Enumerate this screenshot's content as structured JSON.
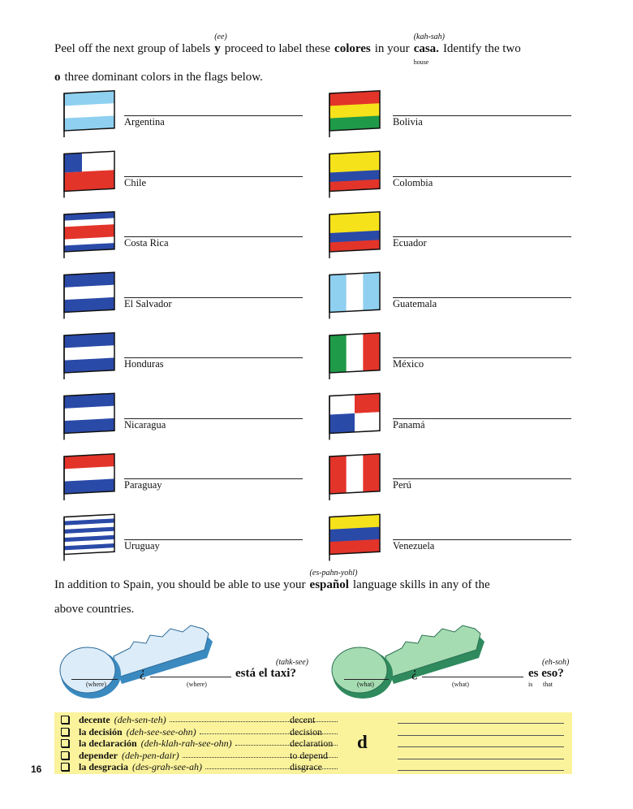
{
  "intro": {
    "line1": [
      {
        "text": "Peel off the next group of labels"
      },
      {
        "text": "y",
        "bold": true,
        "above": "(ee)"
      },
      {
        "text": "proceed to label these"
      },
      {
        "text": "colores",
        "bold": true
      },
      {
        "text": "in your"
      },
      {
        "text": "casa.",
        "bold": true,
        "above": "(kah-sah)",
        "below": "house"
      },
      {
        "text": "Identify the two"
      }
    ],
    "line2": [
      {
        "text": "o",
        "bold": true
      },
      {
        "text": "three dominant colors in the flags below."
      }
    ]
  },
  "flags": {
    "left": [
      "Argentina",
      "Chile",
      "Costa Rica",
      "El Salvador",
      "Honduras",
      "Nicaragua",
      "Paraguay",
      "Uruguay"
    ],
    "right": [
      "Bolivia",
      "Colombia",
      "Ecuador",
      "Guatemala",
      "México",
      "Panamá",
      "Perú",
      "Venezuela"
    ]
  },
  "outro": {
    "line1": [
      {
        "text": "In addition to Spain, you should be able to use your"
      },
      {
        "text": "español",
        "bold": true,
        "above": "(es-pahn-yohl)"
      },
      {
        "text": "language skills in any of the"
      }
    ],
    "line2": [
      {
        "text": "above countries."
      }
    ]
  },
  "keys": {
    "left": {
      "key_label": "(where)",
      "mark": "¿",
      "blank_label": "(where)",
      "phrase": "está el taxi?",
      "pronunciation": "(tahk-see)"
    },
    "right": {
      "key_label": "(what)",
      "mark": "¿",
      "blank_label": "(what)",
      "phrase": "es eso?",
      "pronunciation": "(eh-soh)",
      "gloss": [
        "is",
        "that"
      ]
    }
  },
  "vocabulary": {
    "letter": "d",
    "rows": [
      {
        "word": "decente",
        "pronunciation": "(deh-sen-teh)",
        "english": "decent"
      },
      {
        "word": "la decisión",
        "pronunciation": "(deh-see-see-ohn)",
        "english": "decision"
      },
      {
        "word": "la declaración",
        "pronunciation": "(deh-klah-rah-see-ohn)",
        "english": "declaration"
      },
      {
        "word": "depender",
        "pronunciation": "(deh-pen-dair)",
        "english": "to depend"
      },
      {
        "word": "la desgracia",
        "pronunciation": "(des-grah-see-ah)",
        "english": "disgrace"
      }
    ]
  },
  "page_number": "16"
}
